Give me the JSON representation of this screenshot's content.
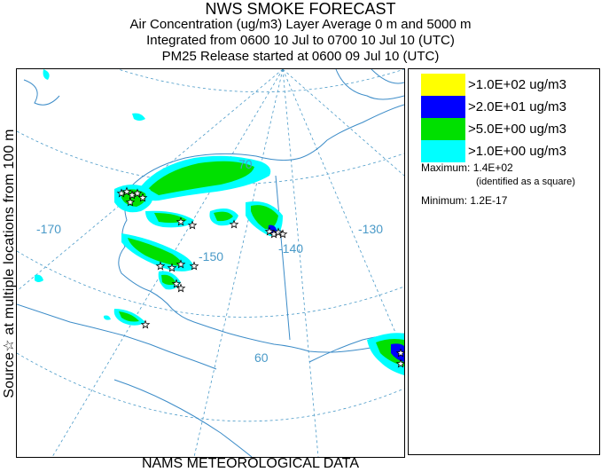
{
  "header": {
    "title": "NWS SMOKE FORECAST",
    "line2": "Air Concentration (ug/m3) Layer Average    0 m and  5000 m",
    "line3": "Integrated from 0600 10 Jul to 0700 10 Jul 10 (UTC)",
    "line4": "PM25 Release started at 0600 09 Jul 10 (UTC)"
  },
  "side_label": "Source☆  at multiple locations    from   100 m",
  "footer": "NAMS METEOROLOGICAL DATA",
  "map": {
    "labels": {
      "lon_170": "-170",
      "lon_150": "-150",
      "lon_140": "-140",
      "lon_130": "-130",
      "lat_60": "60",
      "lat_70": "70"
    }
  },
  "legend": {
    "items": [
      {
        "label": ">1.0E+02 ug/m3",
        "color": "#ffff00"
      },
      {
        "label": ">2.0E+01 ug/m3",
        "color": "#0000ff"
      },
      {
        "label": ">5.0E+00 ug/m3",
        "color": "#00e000"
      },
      {
        "label": ">1.0E+00 ug/m3",
        "color": "#00ffff"
      }
    ],
    "maximum_label": "Maximum:",
    "maximum_value": "1.4E+02",
    "maximum_note": "(identified as a square)",
    "minimum_label": "Minimum:",
    "minimum_value": "1.2E-17"
  },
  "colors": {
    "coast": "#3c8cc8",
    "grid": "#4a9ac8"
  }
}
